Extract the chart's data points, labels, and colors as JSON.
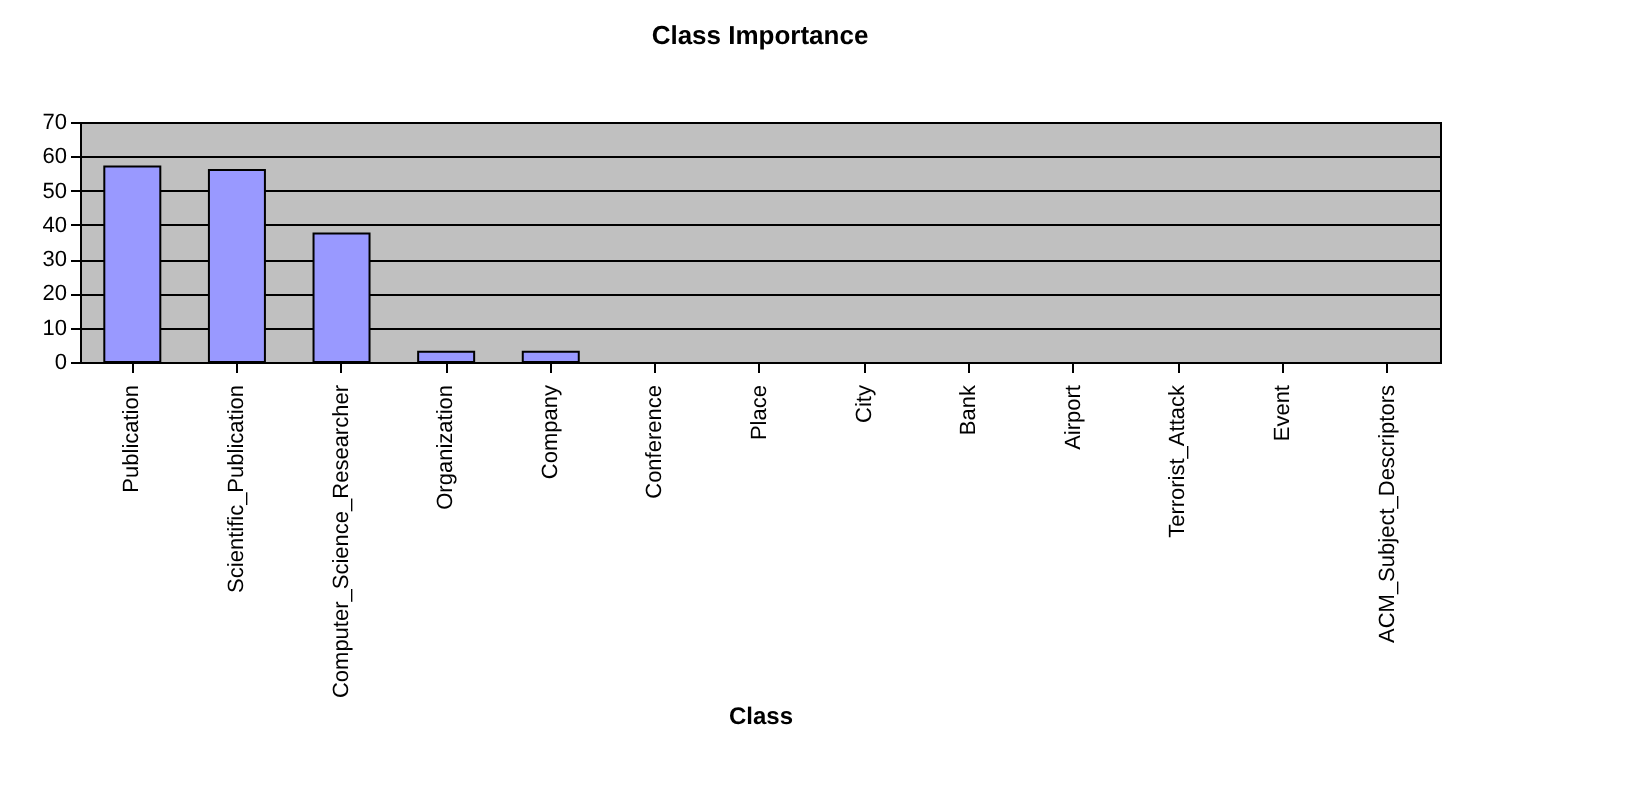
{
  "chart_data": {
    "type": "bar",
    "title": "Class Importance",
    "xlabel": "Class",
    "categories": [
      "Publication",
      "Scientific_Publication",
      "Computer_Science_Researcher",
      "Organization",
      "Company",
      "Conference",
      "Place",
      "City",
      "Bank",
      "Airport",
      "Terrorist_Attack",
      "Event",
      "ACM_Subject_Descriptors"
    ],
    "values": [
      57,
      56,
      37.5,
      3,
      3,
      0,
      0,
      0,
      0,
      0,
      0,
      0,
      0
    ],
    "color": "#9999ff",
    "ylim": [
      0,
      70
    ],
    "yticks": [
      0,
      10,
      20,
      30,
      40,
      50,
      60,
      70
    ],
    "grid": "y"
  }
}
